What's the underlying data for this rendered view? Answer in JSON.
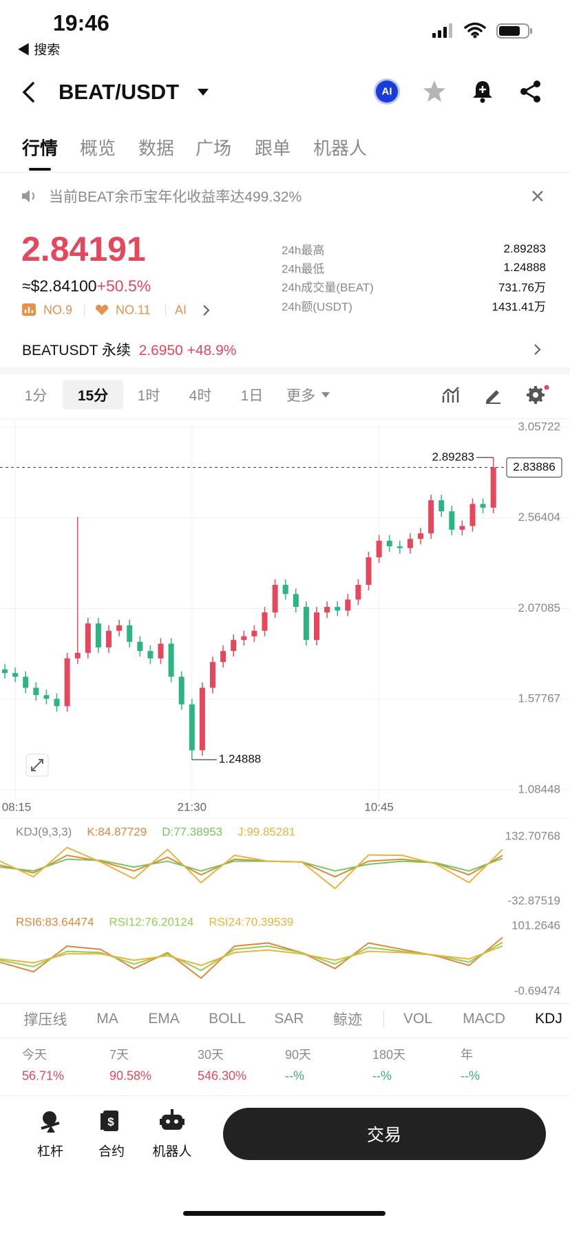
{
  "status": {
    "time": "19:46",
    "back": "◀ 搜索"
  },
  "header": {
    "symbol": "BEAT/USDT",
    "ai": "AI"
  },
  "tabs": [
    "行情",
    "概览",
    "数据",
    "广场",
    "跟单",
    "机器人"
  ],
  "notice": "当前BEAT余币宝年化收益率达499.32%",
  "price": {
    "last": "2.84191",
    "usd": "≈$2.84100",
    "change": "+50.5%",
    "ranks": [
      "NO.9",
      "NO.11",
      "AI"
    ]
  },
  "stats": [
    {
      "label": "24h最高",
      "value": "2.89283"
    },
    {
      "label": "24h最低",
      "value": "1.24888"
    },
    {
      "label": "24h成交量(BEAT)",
      "value": "731.76万"
    },
    {
      "label": "24h额(USDT)",
      "value": "1431.41万"
    }
  ],
  "perpetual": {
    "name": "BEATUSDT 永续",
    "price": "2.6950",
    "change": "+48.9%"
  },
  "timeframes": [
    "1分",
    "15分",
    "1时",
    "4时",
    "1日",
    "更多"
  ],
  "price_chart": {
    "type": "candlestick",
    "categories": [
      null,
      "08:15",
      null,
      null,
      null,
      null,
      null,
      null,
      null,
      null,
      null,
      null,
      null,
      null,
      null,
      null,
      null,
      null,
      "21:30",
      null,
      null,
      null,
      null,
      null,
      null,
      null,
      null,
      null,
      null,
      null,
      null,
      null,
      null,
      null,
      null,
      null,
      "10:45",
      null,
      null,
      null,
      null,
      null,
      null,
      null,
      null,
      null,
      null,
      null
    ],
    "open": [
      1.74,
      1.72,
      1.7,
      1.64,
      1.6,
      1.58,
      1.54,
      1.8,
      1.83,
      1.99,
      1.86,
      1.95,
      1.98,
      1.89,
      1.84,
      1.8,
      1.88,
      1.7,
      1.55,
      1.3,
      1.64,
      1.78,
      1.84,
      1.9,
      1.92,
      1.95,
      2.05,
      2.2,
      2.15,
      2.08,
      1.9,
      2.05,
      2.08,
      2.06,
      2.12,
      2.2,
      2.35,
      2.44,
      2.41,
      2.4,
      2.45,
      2.48,
      2.66,
      2.6,
      2.5,
      2.52,
      2.64,
      2.62
    ],
    "high": [
      1.77,
      1.75,
      1.73,
      1.67,
      1.63,
      1.61,
      1.83,
      2.57,
      2.02,
      2.02,
      1.98,
      2.01,
      2.01,
      1.92,
      1.87,
      1.91,
      1.91,
      1.73,
      1.58,
      1.67,
      1.81,
      1.87,
      1.93,
      1.95,
      1.98,
      2.08,
      2.23,
      2.23,
      2.18,
      2.11,
      2.08,
      2.11,
      2.11,
      2.15,
      2.23,
      2.38,
      2.47,
      2.47,
      2.44,
      2.48,
      2.51,
      2.69,
      2.69,
      2.63,
      2.55,
      2.67,
      2.67,
      2.89283
    ],
    "low": [
      1.69,
      1.67,
      1.61,
      1.57,
      1.55,
      1.51,
      1.51,
      1.77,
      1.8,
      1.83,
      1.83,
      1.92,
      1.86,
      1.81,
      1.77,
      1.77,
      1.67,
      1.52,
      1.24888,
      1.27,
      1.61,
      1.75,
      1.81,
      1.87,
      1.89,
      1.92,
      2.02,
      2.12,
      2.05,
      1.87,
      1.87,
      2.02,
      2.03,
      2.03,
      2.09,
      2.17,
      2.32,
      2.38,
      2.37,
      2.37,
      2.42,
      2.45,
      2.57,
      2.47,
      2.47,
      2.49,
      2.59,
      2.59
    ],
    "close": [
      1.72,
      1.7,
      1.64,
      1.6,
      1.58,
      1.54,
      1.8,
      1.83,
      1.99,
      1.86,
      1.95,
      1.98,
      1.89,
      1.84,
      1.8,
      1.88,
      1.7,
      1.55,
      1.3,
      1.64,
      1.78,
      1.84,
      1.9,
      1.92,
      1.95,
      2.05,
      2.2,
      2.15,
      2.08,
      1.9,
      2.05,
      2.08,
      2.06,
      2.12,
      2.2,
      2.35,
      2.44,
      2.41,
      2.4,
      2.45,
      2.48,
      2.66,
      2.6,
      2.5,
      2.52,
      2.64,
      2.62,
      2.83886
    ],
    "up_color": "#e5475c",
    "down_color": "#2eb383",
    "ylim": [
      1.08448,
      3.05722
    ],
    "yticks": [
      1.08448,
      1.57767,
      2.07085,
      2.56404,
      3.05722
    ],
    "grid": true
  },
  "kdj": {
    "type": "line",
    "title": "KDJ(9,3,3)",
    "ylim": [
      -32.87519,
      132.70768
    ],
    "yticks": [
      -32.87519,
      132.70768
    ],
    "series": [
      {
        "name": "K:84.87729",
        "color": "#e0873a",
        "values": [
          60,
          40,
          85,
          70,
          45,
          80,
          35,
          75,
          70,
          68,
          30,
          70,
          75,
          65,
          35,
          84.87729
        ]
      },
      {
        "name": "D:77.38953",
        "color": "#72c95a",
        "values": [
          55,
          45,
          75,
          72,
          55,
          70,
          45,
          70,
          70,
          68,
          45,
          62,
          70,
          66,
          45,
          77.38953
        ]
      },
      {
        "name": "J:99.85281",
        "color": "#e8b43c",
        "values": [
          70,
          30,
          105,
          68,
          25,
          100,
          15,
          85,
          70,
          68,
          0,
          86,
          85,
          63,
          15,
          99.85281
        ]
      }
    ]
  },
  "rsi": {
    "type": "line",
    "ylim": [
      -0.69474,
      101.2646
    ],
    "yticks": [
      -0.69474,
      101.2646
    ],
    "series": [
      {
        "name": "RSI6:83.64474",
        "color": "#e0873a",
        "values": [
          45,
          30,
          70,
          65,
          35,
          60,
          20,
          70,
          75,
          60,
          35,
          75,
          65,
          55,
          40,
          83.64474
        ]
      },
      {
        "name": "RSI12:76.20124",
        "color": "#8fd14f",
        "values": [
          48,
          38,
          62,
          60,
          42,
          58,
          32,
          65,
          70,
          60,
          42,
          68,
          62,
          56,
          45,
          76.20124
        ]
      },
      {
        "name": "RSI24:70.39539",
        "color": "#e8b43c",
        "values": [
          50,
          44,
          58,
          58,
          48,
          55,
          40,
          60,
          64,
          58,
          48,
          62,
          60,
          56,
          50,
          70.39539
        ]
      }
    ]
  },
  "indicators": [
    "撑压线",
    "MA",
    "EMA",
    "BOLL",
    "SAR",
    "鲸迹",
    "VOL",
    "MACD",
    "KDJ"
  ],
  "performance": [
    {
      "label": "今天",
      "value": "56.71%"
    },
    {
      "label": "7天",
      "value": "90.58%"
    },
    {
      "label": "30天",
      "value": "546.30%"
    },
    {
      "label": "90天",
      "value": "--%"
    },
    {
      "label": "180天",
      "value": "--%"
    },
    {
      "label": "年",
      "value": "--%"
    }
  ],
  "bottom": {
    "actions": [
      "杠杆",
      "合约",
      "机器人"
    ],
    "trade": "交易"
  }
}
